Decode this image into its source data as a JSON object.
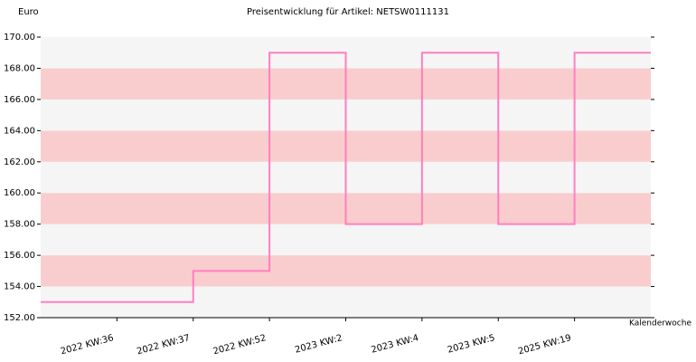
{
  "chart_data": {
    "type": "step",
    "title": "Preisentwicklung für Artikel: NETSW0111131",
    "y_label": "Euro",
    "x_label": "Kalenderwoche",
    "categories": [
      "2022 KW:36",
      "2022 KW:37",
      "2022 KW:52",
      "2023 KW:2",
      "2023 KW:4",
      "2023 KW:5",
      "2025 KW:19"
    ],
    "values": [
      153,
      155,
      169,
      158,
      169,
      158,
      169
    ],
    "color": "#ff7fbf",
    "band_colors": [
      "#f5f5f5",
      "#f9cdcd"
    ],
    "ylim": [
      152,
      170
    ],
    "yticks": [
      {
        "value": 152,
        "label": "152.00"
      },
      {
        "value": 154,
        "label": "154.00"
      },
      {
        "value": 156,
        "label": "156.00"
      },
      {
        "value": 158,
        "label": "158.00"
      },
      {
        "value": 160,
        "label": "160.00"
      },
      {
        "value": 162,
        "label": "162.00"
      },
      {
        "value": 164,
        "label": "164.00"
      },
      {
        "value": 166,
        "label": "166.00"
      },
      {
        "value": 168,
        "label": "168.00"
      },
      {
        "value": 170,
        "label": "170.00"
      }
    ]
  }
}
